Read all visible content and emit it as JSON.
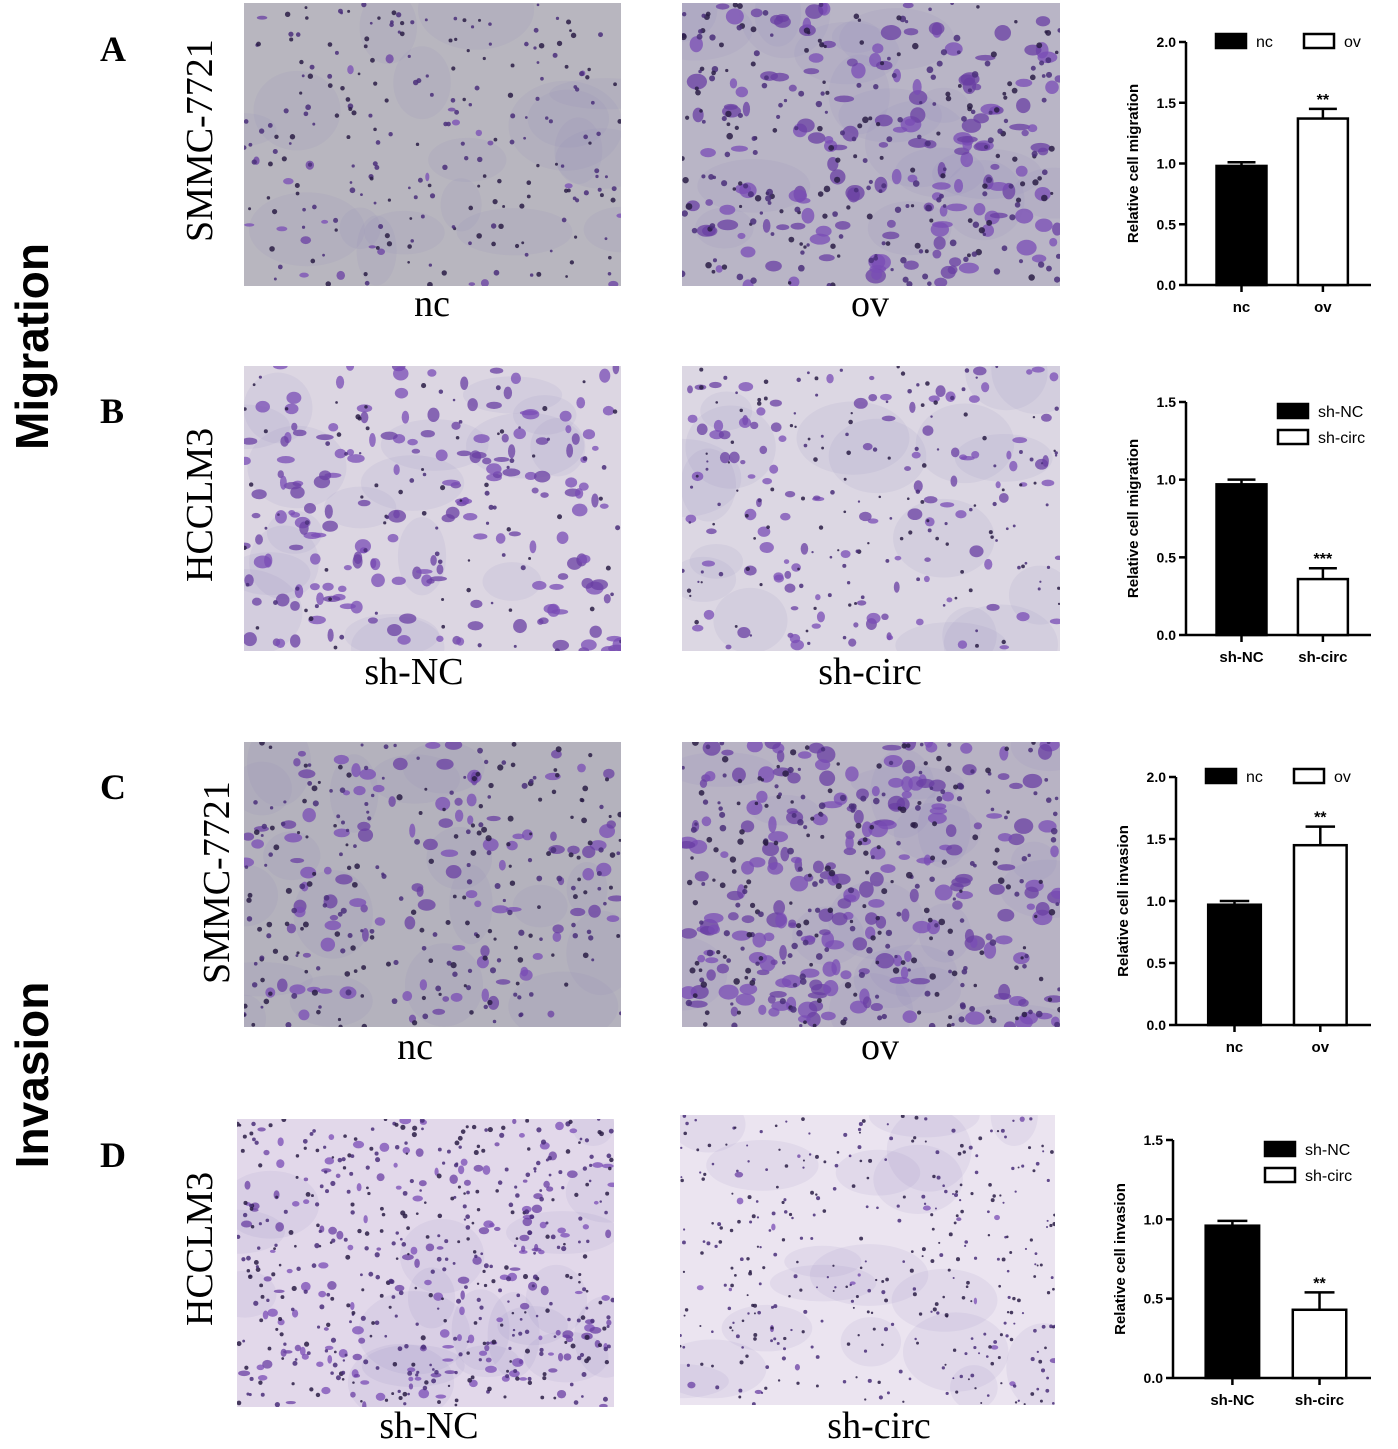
{
  "sections": [
    {
      "label": "Migration"
    },
    {
      "label": "Invasion"
    }
  ],
  "panels": [
    {
      "letter": "A",
      "cell_line": "SMMC-7721",
      "conditions": [
        "nc",
        "ov"
      ]
    },
    {
      "letter": "B",
      "cell_line": "HCCLM3",
      "conditions": [
        "sh-NC",
        "sh-circ"
      ]
    },
    {
      "letter": "C",
      "cell_line": "SMMC-7721",
      "conditions": [
        "nc",
        "ov"
      ]
    },
    {
      "letter": "D",
      "cell_line": "HCCLM3",
      "conditions": [
        "sh-NC",
        "sh-circ"
      ]
    }
  ],
  "colors": {
    "bar_fill_control": "#000000",
    "bar_fill_treated": "#ffffff",
    "stain": "#6b3fa0",
    "background_gray": "#b9b6c4",
    "background_pale": "#e3dbea"
  },
  "chart_data": [
    {
      "type": "bar",
      "categories": [
        "nc",
        "ov"
      ],
      "values": [
        0.98,
        1.37
      ],
      "errors": [
        0.03,
        0.08
      ],
      "significance": [
        "",
        "**"
      ],
      "ylabel": "Relative cell migration",
      "ylim": [
        0,
        2.0
      ],
      "yticks": [
        "0.0",
        "0.5",
        "1.0",
        "1.5",
        "2.0"
      ],
      "legend": [
        "nc",
        "ov"
      ],
      "legend_layout": "horizontal-top"
    },
    {
      "type": "bar",
      "categories": [
        "sh-NC",
        "sh-circ"
      ],
      "values": [
        0.97,
        0.36
      ],
      "errors": [
        0.03,
        0.07
      ],
      "significance": [
        "",
        "***"
      ],
      "ylabel": "Relative cell migration",
      "ylim": [
        0,
        1.5
      ],
      "yticks": [
        "0.0",
        "0.5",
        "1.0",
        "1.5"
      ],
      "legend": [
        "sh-NC",
        "sh-circ"
      ],
      "legend_layout": "vertical-top-right"
    },
    {
      "type": "bar",
      "categories": [
        "nc",
        "ov"
      ],
      "values": [
        0.97,
        1.45
      ],
      "errors": [
        0.03,
        0.15
      ],
      "significance": [
        "",
        "**"
      ],
      "ylabel": "Relative cell invasion",
      "ylim": [
        0,
        2.0
      ],
      "yticks": [
        "0.0",
        "0.5",
        "1.0",
        "1.5",
        "2.0"
      ],
      "legend": [
        "nc",
        "ov"
      ],
      "legend_layout": "horizontal-top"
    },
    {
      "type": "bar",
      "categories": [
        "sh-NC",
        "sh-circ"
      ],
      "values": [
        0.96,
        0.43
      ],
      "errors": [
        0.03,
        0.11
      ],
      "significance": [
        "",
        "**"
      ],
      "ylabel": "Relative cell invasion",
      "ylim": [
        0,
        1.5
      ],
      "yticks": [
        "0.0",
        "0.5",
        "1.0",
        "1.5"
      ],
      "legend": [
        "sh-NC",
        "sh-circ"
      ],
      "legend_layout": "vertical-top-right"
    }
  ]
}
